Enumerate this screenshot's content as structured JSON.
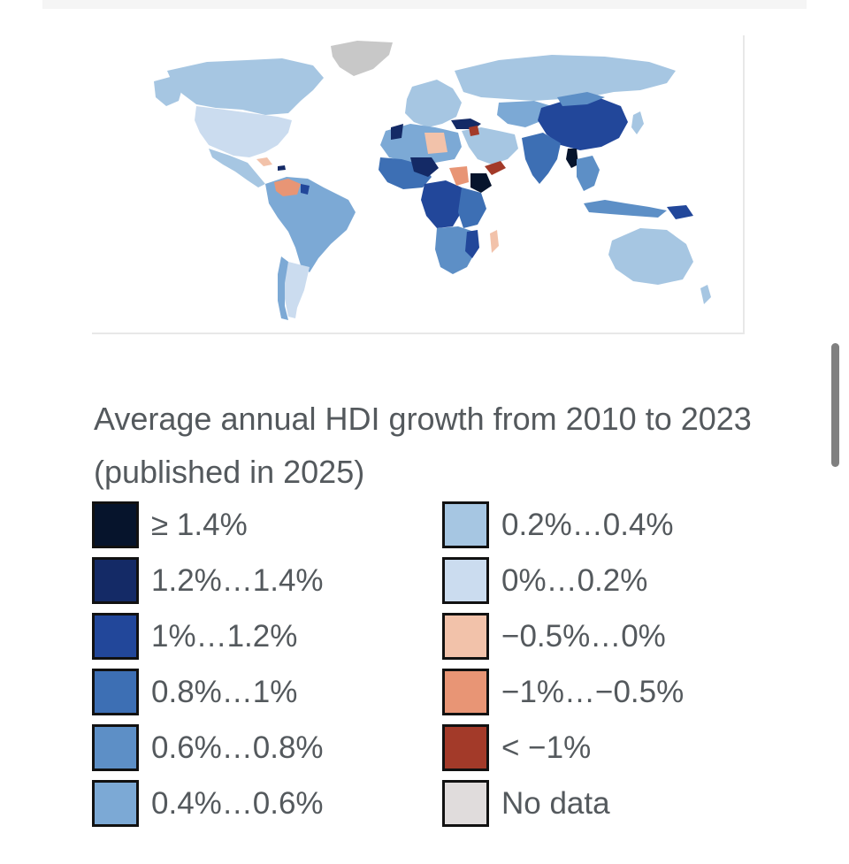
{
  "map": {
    "name": "World map of average annual HDI growth"
  },
  "legend": {
    "title": "Average annual HDI growth from 2010 to 2023 (published in 2025)",
    "left_items": [
      {
        "label": "≥ 1.4%",
        "color": "#06142c"
      },
      {
        "label": "1.2%…1.4%",
        "color": "#142a66"
      },
      {
        "label": "1%…1.2%",
        "color": "#22479a"
      },
      {
        "label": "0.8%…1%",
        "color": "#3d6fb4"
      },
      {
        "label": "0.6%…0.8%",
        "color": "#5d8fc6"
      },
      {
        "label": "0.4%…0.6%",
        "color": "#7ca9d5"
      }
    ],
    "right_items": [
      {
        "label": "0.2%…0.4%",
        "color": "#a6c6e2"
      },
      {
        "label": "0%…0.2%",
        "color": "#cbdcef"
      },
      {
        "label": "−0.5%…0%",
        "color": "#f2c2aa"
      },
      {
        "label": "−1%…−0.5%",
        "color": "#e89575"
      },
      {
        "label": "< −1%",
        "color": "#a33a29"
      },
      {
        "label": "No data",
        "color": "#e0dcdc"
      }
    ]
  }
}
